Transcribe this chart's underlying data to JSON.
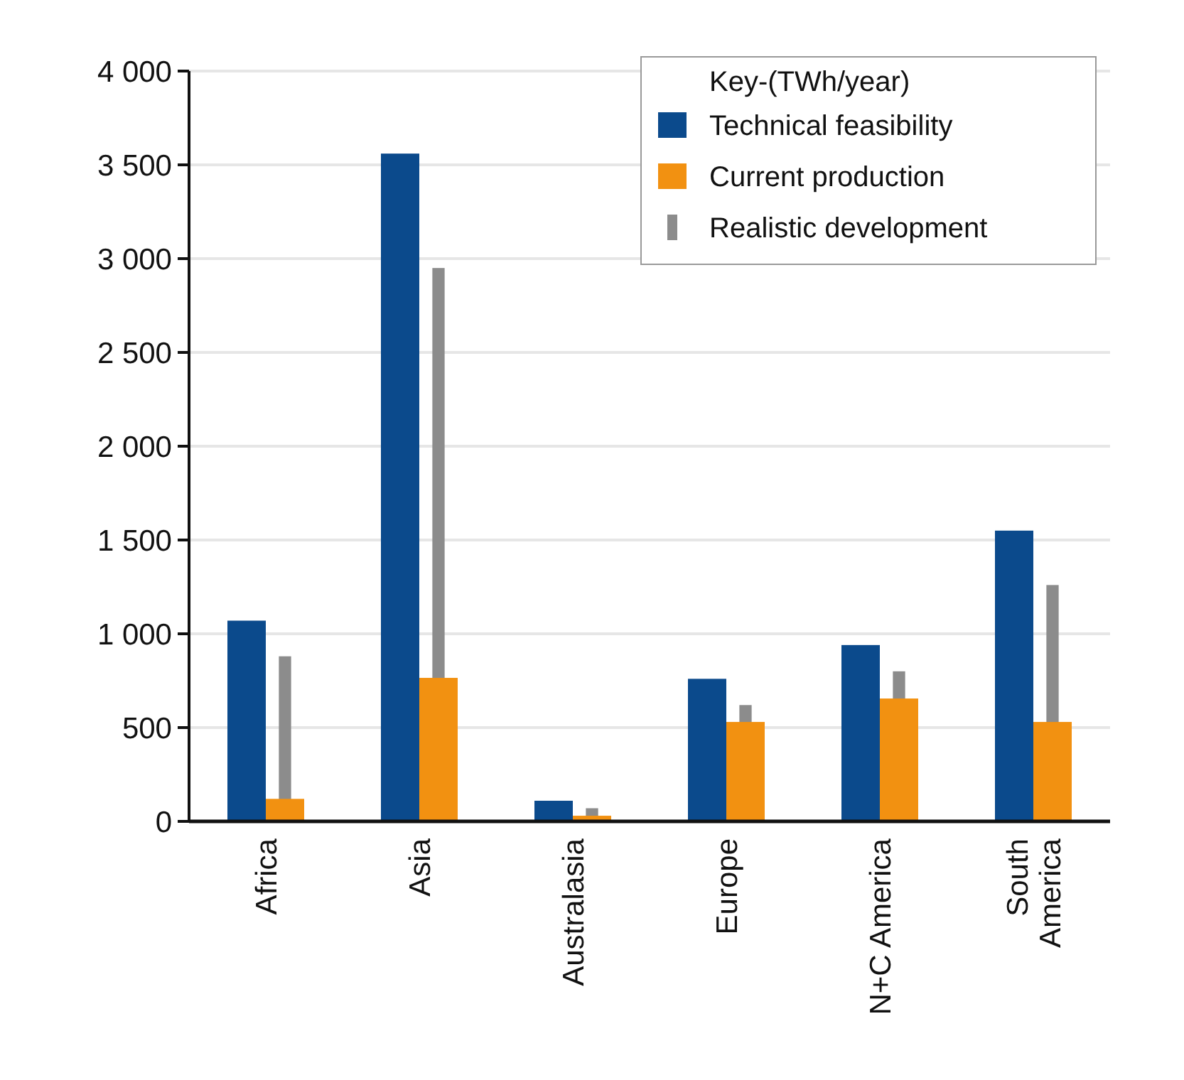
{
  "chart_data": {
    "type": "bar",
    "legend_title": "Key-(TWh/year)",
    "categories": [
      "Africa",
      "Asia",
      "Australasia",
      "Europe",
      "N+C America",
      "South America"
    ],
    "series": [
      {
        "name": "Technical feasibility",
        "color": "#0b4a8c",
        "values": [
          1070,
          3560,
          110,
          760,
          940,
          1550
        ]
      },
      {
        "name": "Current production",
        "color": "#f29111",
        "values": [
          120,
          765,
          30,
          530,
          655,
          530
        ]
      },
      {
        "name": "Realistic development",
        "color": "#8c8c8c",
        "values": [
          880,
          2950,
          70,
          620,
          800,
          1260
        ]
      }
    ],
    "ylim": [
      0,
      4000
    ],
    "yticks": [
      0,
      500,
      {
        "value": 1000,
        "label": "1 000"
      },
      {
        "value": 1500,
        "label": "1 500"
      },
      {
        "value": 2000,
        "label": "2 000"
      },
      {
        "value": 2500,
        "label": "2 500"
      },
      {
        "value": 3000,
        "label": "3 000"
      },
      {
        "value": 3500,
        "label": "3 500"
      },
      {
        "value": 4000,
        "label": "4 000"
      }
    ],
    "grid": "y",
    "legend": "top right"
  }
}
